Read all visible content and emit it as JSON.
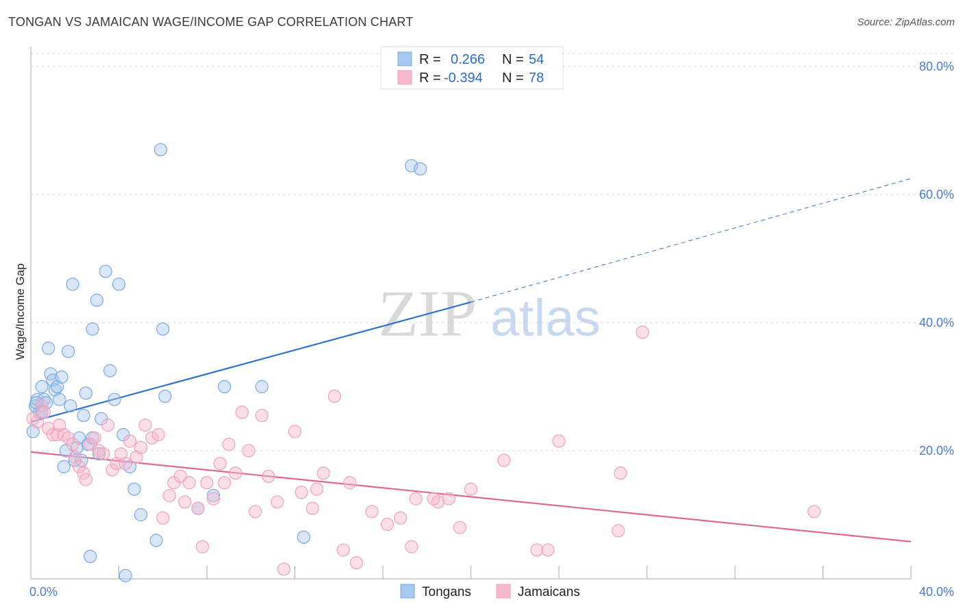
{
  "title": "TONGAN VS JAMAICAN WAGE/INCOME GAP CORRELATION CHART",
  "source": "Source: ZipAtlas.com",
  "watermark": {
    "zip": "ZIP",
    "atlas": "atlas"
  },
  "legend": {
    "rows": [
      {
        "r_label": "R =",
        "r_value": "0.266",
        "n_label": "N =",
        "n_value": "54",
        "color": "#a8c8f0"
      },
      {
        "r_label": "R =",
        "r_value": "-0.394",
        "n_label": "N =",
        "n_value": "78",
        "color": "#f5b8cc"
      }
    ]
  },
  "bottom_legend": [
    {
      "label": "Tongans",
      "color": "#a8c8f0"
    },
    {
      "label": "Jamaicans",
      "color": "#f5b8cc"
    }
  ],
  "chart_data": {
    "type": "scatter",
    "title": "TONGAN VS JAMAICAN WAGE/INCOME GAP CORRELATION CHART",
    "xlabel": "",
    "ylabel": "Wage/Income Gap",
    "xlim": [
      0,
      40
    ],
    "ylim": [
      0,
      80
    ],
    "x_ticks": [
      0,
      4,
      8,
      12,
      16,
      20,
      24,
      28,
      32,
      36,
      40
    ],
    "x_tick_labels": [
      {
        "value": 0,
        "label": "0.0%"
      },
      {
        "value": 40,
        "label": "40.0%"
      }
    ],
    "y_ticks": [
      {
        "value": 20,
        "label": "20.0%"
      },
      {
        "value": 40,
        "label": "40.0%"
      },
      {
        "value": 60,
        "label": "60.0%"
      },
      {
        "value": 80,
        "label": "80.0%"
      }
    ],
    "grid": "horizontal dashed",
    "legend_position": "top-center",
    "series": [
      {
        "name": "Tongans",
        "color": "#7aa8e0",
        "fill": "#a8c8f0",
        "trend": {
          "x0": 0,
          "y0": 24.5,
          "x1": 20,
          "y1": 43.2,
          "dash_x1": 40,
          "dash_y1": 62.5,
          "color": "#2f72cc"
        },
        "points": [
          [
            0.1,
            23
          ],
          [
            0.2,
            27
          ],
          [
            0.3,
            28
          ],
          [
            0.4,
            26
          ],
          [
            0.5,
            30
          ],
          [
            0.6,
            28
          ],
          [
            0.7,
            27.5
          ],
          [
            0.8,
            36
          ],
          [
            0.9,
            32
          ],
          [
            1.0,
            31
          ],
          [
            1.1,
            29.5
          ],
          [
            1.2,
            30
          ],
          [
            1.3,
            28
          ],
          [
            1.4,
            31.5
          ],
          [
            1.5,
            17.5
          ],
          [
            1.6,
            20
          ],
          [
            1.7,
            35.5
          ],
          [
            1.8,
            27
          ],
          [
            1.9,
            46
          ],
          [
            2.0,
            18.5
          ],
          [
            2.1,
            20.5
          ],
          [
            2.2,
            22
          ],
          [
            2.3,
            18.5
          ],
          [
            2.4,
            25.5
          ],
          [
            2.5,
            29
          ],
          [
            2.6,
            21
          ],
          [
            2.7,
            3.5
          ],
          [
            2.8,
            39
          ],
          [
            2.8,
            22
          ],
          [
            3.0,
            43.5
          ],
          [
            3.1,
            19.5
          ],
          [
            3.2,
            25
          ],
          [
            3.4,
            48
          ],
          [
            3.6,
            32.5
          ],
          [
            3.8,
            28
          ],
          [
            4.0,
            46
          ],
          [
            4.2,
            22.5
          ],
          [
            4.5,
            17.5
          ],
          [
            4.7,
            14
          ],
          [
            5.0,
            10
          ],
          [
            5.7,
            6
          ],
          [
            5.9,
            67
          ],
          [
            6.0,
            39
          ],
          [
            6.1,
            28.5
          ],
          [
            4.3,
            0.5
          ],
          [
            7.6,
            11
          ],
          [
            8.3,
            13
          ],
          [
            8.8,
            30
          ],
          [
            10.5,
            30
          ],
          [
            12.4,
            6.5
          ],
          [
            17.3,
            64.5
          ],
          [
            17.7,
            64
          ],
          [
            0.25,
            27.5
          ],
          [
            0.5,
            26
          ]
        ]
      },
      {
        "name": "Jamaicans",
        "color": "#f0a0bc",
        "fill": "#f5b8cc",
        "trend": {
          "x0": 0,
          "y0": 19.8,
          "x1": 40,
          "y1": 5.8,
          "color": "#e06890"
        },
        "points": [
          [
            0.1,
            25
          ],
          [
            0.3,
            24.5
          ],
          [
            0.5,
            27
          ],
          [
            0.6,
            26
          ],
          [
            0.8,
            23.5
          ],
          [
            1.0,
            22.5
          ],
          [
            1.2,
            22.5
          ],
          [
            1.3,
            24
          ],
          [
            1.5,
            22.5
          ],
          [
            1.7,
            22
          ],
          [
            1.9,
            21
          ],
          [
            2.0,
            19
          ],
          [
            2.2,
            17.5
          ],
          [
            2.4,
            16.5
          ],
          [
            2.5,
            15.5
          ],
          [
            2.7,
            21
          ],
          [
            2.9,
            22
          ],
          [
            3.1,
            20
          ],
          [
            3.3,
            19.5
          ],
          [
            3.5,
            24
          ],
          [
            3.7,
            17
          ],
          [
            3.9,
            18
          ],
          [
            4.1,
            19.5
          ],
          [
            4.3,
            18
          ],
          [
            4.5,
            21.5
          ],
          [
            4.8,
            19
          ],
          [
            5.0,
            20.5
          ],
          [
            5.2,
            24
          ],
          [
            5.5,
            22
          ],
          [
            5.8,
            22.5
          ],
          [
            6.0,
            9.5
          ],
          [
            6.3,
            13
          ],
          [
            6.5,
            15
          ],
          [
            6.8,
            16
          ],
          [
            7.0,
            12
          ],
          [
            7.2,
            15
          ],
          [
            7.6,
            11
          ],
          [
            7.8,
            5
          ],
          [
            8.0,
            15
          ],
          [
            8.3,
            12.5
          ],
          [
            8.6,
            18
          ],
          [
            8.8,
            15
          ],
          [
            9.0,
            21
          ],
          [
            9.3,
            16.5
          ],
          [
            9.6,
            26
          ],
          [
            9.9,
            20
          ],
          [
            10.2,
            10.5
          ],
          [
            10.5,
            25.5
          ],
          [
            10.8,
            16
          ],
          [
            11.2,
            12
          ],
          [
            11.5,
            1.5
          ],
          [
            12.0,
            23
          ],
          [
            12.3,
            13.5
          ],
          [
            12.8,
            11
          ],
          [
            13.0,
            14
          ],
          [
            13.3,
            16.5
          ],
          [
            13.8,
            28.5
          ],
          [
            14.2,
            4.5
          ],
          [
            14.5,
            15
          ],
          [
            14.8,
            2.5
          ],
          [
            15.5,
            10.5
          ],
          [
            16.2,
            8.5
          ],
          [
            16.8,
            9.5
          ],
          [
            17.3,
            5
          ],
          [
            17.5,
            12.5
          ],
          [
            18.5,
            12
          ],
          [
            19.0,
            12.5
          ],
          [
            19.5,
            8
          ],
          [
            20.0,
            14
          ],
          [
            21.5,
            18.5
          ],
          [
            23.0,
            4.5
          ],
          [
            23.5,
            4.5
          ],
          [
            24.0,
            21.5
          ],
          [
            26.8,
            16.5
          ],
          [
            27.8,
            38.5
          ],
          [
            26.7,
            7.5
          ],
          [
            35.6,
            10.5
          ],
          [
            18.3,
            12.5
          ]
        ]
      }
    ]
  }
}
